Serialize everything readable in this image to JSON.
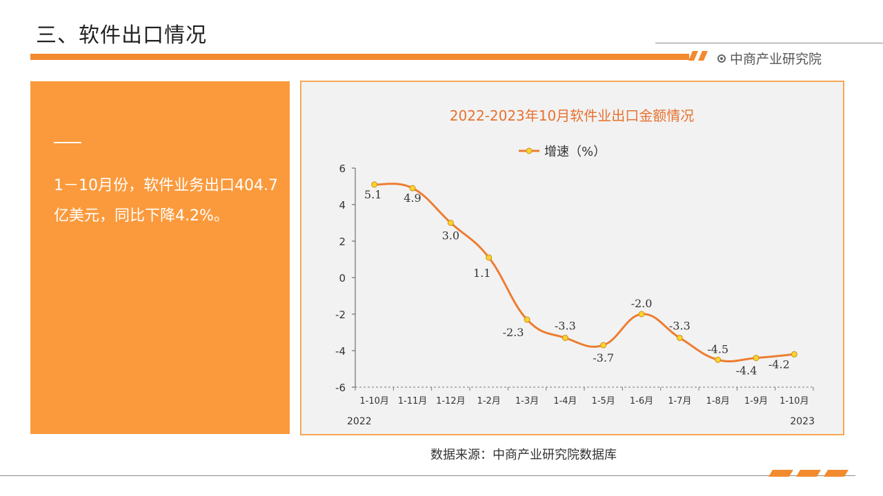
{
  "header": {
    "title": "三、软件出口情况",
    "brand": "中商产业研究院"
  },
  "left_panel": {
    "text": "1－10月份，软件业务出口404.7亿美元，同比下降4.2%。"
  },
  "colors": {
    "accent": "#f28a2e",
    "panel": "#fb9a3c",
    "line": "#ed7d31",
    "marker": "#ffd22e",
    "chart_title": "#e8712d"
  },
  "chart_data": {
    "type": "line",
    "title": "2022-2023年10月软件业出口金额情况",
    "categories": [
      "1-10月",
      "1-11月",
      "1-12月",
      "1-2月",
      "1-3月",
      "1-4月",
      "1-5月",
      "1-6月",
      "1-7月",
      "1-8月",
      "1-9月",
      "1-10月"
    ],
    "year_labels": [
      "2022",
      "2023"
    ],
    "series": [
      {
        "name": "增速（%）",
        "values": [
          5.1,
          4.9,
          3.0,
          1.1,
          -2.3,
          -3.3,
          -3.7,
          -2.0,
          -3.3,
          -4.5,
          -4.4,
          -4.2
        ]
      }
    ],
    "value_labels": [
      "5.1",
      "4.9",
      "3.0",
      "1.1",
      "-2.3",
      "-3.3",
      "-3.7",
      "-2.0",
      "-3.3",
      "-4.5",
      "-4.4",
      "-4.2"
    ],
    "ylim": [
      -6,
      6
    ],
    "yticks": [
      "6",
      "4",
      "2",
      "0",
      "-2",
      "-4",
      "-6"
    ],
    "legend_position": "top-center",
    "grid": false
  },
  "source": "数据来源：中商产业研究院数据库"
}
